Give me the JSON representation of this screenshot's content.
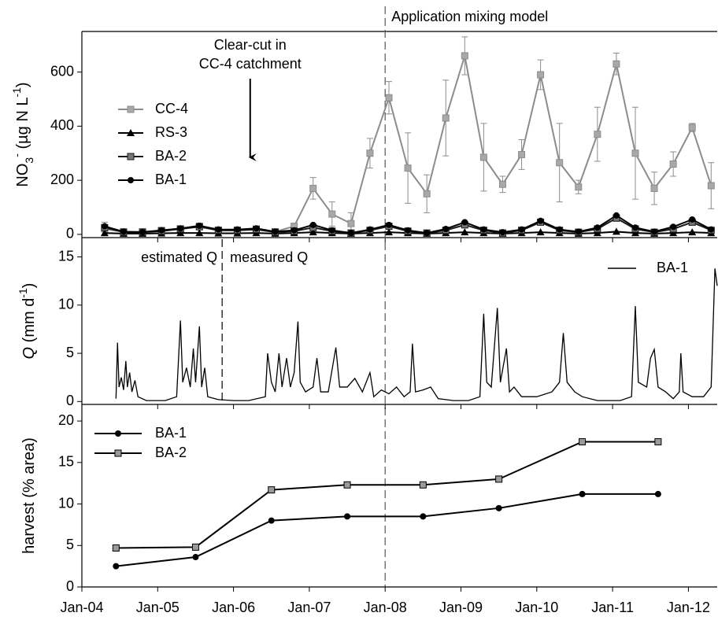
{
  "chart_data": [
    {
      "type": "line",
      "ylabel": [
        {
          "text": "NO"
        },
        {
          "text": "3",
          "pos": "sub"
        },
        {
          "text": "-",
          "pos": "sup"
        },
        {
          "text": " (µg N L"
        },
        {
          "text": "-1",
          "pos": "sup"
        },
        {
          "text": ")"
        }
      ],
      "xlim": [
        2004,
        2012.38
      ],
      "ylim": [
        -12,
        750
      ],
      "yticks": [
        0,
        200,
        400,
        600
      ],
      "x": [
        2004.3,
        2004.55,
        2004.8,
        2005.05,
        2005.3,
        2005.55,
        2005.8,
        2006.05,
        2006.3,
        2006.55,
        2006.8,
        2007.05,
        2007.3,
        2007.55,
        2007.8,
        2008.05,
        2008.3,
        2008.55,
        2008.8,
        2009.05,
        2009.3,
        2009.55,
        2009.8,
        2010.05,
        2010.3,
        2010.55,
        2010.8,
        2011.05,
        2011.3,
        2011.55,
        2011.8,
        2012.05,
        2012.3
      ],
      "legend": "upper left",
      "series": [
        {
          "name": "CC-4",
          "color": "#8c8c8c",
          "marker": "square",
          "fill": "#a8a8a8",
          "values": [
            20,
            10,
            10,
            15,
            20,
            30,
            15,
            15,
            20,
            10,
            30,
            170,
            75,
            40,
            300,
            505,
            245,
            150,
            430,
            660,
            285,
            185,
            295,
            590,
            265,
            175,
            370,
            630,
            300,
            170,
            260,
            395,
            180
          ],
          "errors": [
            25,
            5,
            5,
            5,
            8,
            10,
            8,
            5,
            8,
            5,
            10,
            40,
            45,
            40,
            55,
            60,
            130,
            70,
            140,
            70,
            125,
            30,
            55,
            55,
            145,
            25,
            100,
            40,
            170,
            60,
            45,
            15,
            85
          ]
        },
        {
          "name": "RS-3",
          "color": "#000000",
          "marker": "triangle",
          "fill": "#000000",
          "values": [
            5,
            3,
            3,
            4,
            5,
            5,
            4,
            4,
            5,
            3,
            5,
            8,
            5,
            3,
            5,
            8,
            5,
            3,
            5,
            8,
            5,
            3,
            5,
            8,
            5,
            3,
            5,
            10,
            5,
            3,
            5,
            8,
            5
          ]
        },
        {
          "name": "BA-2",
          "color": "#1a1a1a",
          "marker": "square",
          "fill": "#777777",
          "values": [
            25,
            8,
            8,
            12,
            20,
            28,
            15,
            15,
            18,
            8,
            12,
            25,
            12,
            5,
            15,
            30,
            12,
            5,
            15,
            35,
            15,
            5,
            15,
            45,
            15,
            8,
            20,
            60,
            20,
            8,
            20,
            45,
            15
          ]
        },
        {
          "name": "BA-1",
          "color": "#000000",
          "marker": "circle",
          "fill": "#000000",
          "values": [
            30,
            10,
            8,
            15,
            22,
            32,
            18,
            18,
            22,
            10,
            15,
            35,
            15,
            5,
            18,
            35,
            15,
            5,
            20,
            45,
            18,
            8,
            18,
            50,
            18,
            10,
            25,
            70,
            25,
            10,
            28,
            55,
            18
          ]
        }
      ],
      "annotations": [
        {
          "lines": [
            "Application mixing model"
          ],
          "x": 2008,
          "vline": "all"
        },
        {
          "lines": [
            "Clear-cut in",
            "CC-4 catchment"
          ],
          "x": 2006.22,
          "arrow": true
        }
      ]
    },
    {
      "type": "line",
      "ylabel": [
        {
          "text": "Q",
          "italic": true
        },
        {
          "text": " (mm d"
        },
        {
          "text": "-1",
          "pos": "sup"
        },
        {
          "text": ")"
        }
      ],
      "xlim": [
        2004,
        2012.38
      ],
      "ylim": [
        -0.3,
        17
      ],
      "yticks": [
        0,
        5,
        10,
        15
      ],
      "x": [
        2004.45,
        2004.47,
        2004.49,
        2004.52,
        2004.55,
        2004.58,
        2004.6,
        2004.63,
        2004.66,
        2004.7,
        2004.74,
        2004.85,
        2005.1,
        2005.25,
        2005.3,
        2005.33,
        2005.38,
        2005.43,
        2005.47,
        2005.5,
        2005.55,
        2005.58,
        2005.62,
        2005.66,
        2005.8,
        2006.0,
        2006.2,
        2006.42,
        2006.45,
        2006.5,
        2006.55,
        2006.6,
        2006.64,
        2006.7,
        2006.75,
        2006.8,
        2006.85,
        2006.88,
        2006.95,
        2007.05,
        2007.1,
        2007.15,
        2007.25,
        2007.35,
        2007.4,
        2007.5,
        2007.6,
        2007.7,
        2007.8,
        2007.85,
        2007.95,
        2008.05,
        2008.15,
        2008.25,
        2008.33,
        2008.36,
        2008.4,
        2008.5,
        2008.6,
        2008.7,
        2008.9,
        2009.1,
        2009.25,
        2009.3,
        2009.34,
        2009.4,
        2009.48,
        2009.52,
        2009.6,
        2009.64,
        2009.7,
        2009.8,
        2010.0,
        2010.2,
        2010.3,
        2010.35,
        2010.4,
        2010.5,
        2010.6,
        2010.8,
        2011.1,
        2011.25,
        2011.3,
        2011.34,
        2011.45,
        2011.5,
        2011.55,
        2011.6,
        2011.7,
        2011.8,
        2011.88,
        2011.9,
        2011.93,
        2012.05,
        2012.2,
        2012.3,
        2012.35,
        2012.38
      ],
      "legend": "upper right",
      "series": [
        {
          "name": "BA-1",
          "color": "#000000",
          "marker": "none",
          "values": [
            0.3,
            6.1,
            1.5,
            2.5,
            1.2,
            4.2,
            1.5,
            3.0,
            1.0,
            2.2,
            0.5,
            0.1,
            0.1,
            0.5,
            8.4,
            2,
            3.5,
            1.5,
            5.5,
            2,
            7.8,
            1.5,
            3.5,
            0.5,
            0.2,
            0.1,
            0.1,
            0.5,
            5.0,
            2,
            1,
            5.0,
            1.5,
            4.5,
            1.5,
            3,
            8.3,
            2,
            1,
            1.5,
            4.5,
            1,
            1,
            5.6,
            1.5,
            1.5,
            2.4,
            1,
            3.0,
            0.5,
            1.2,
            0.8,
            1.5,
            0.5,
            1,
            6.0,
            1,
            1.2,
            1.5,
            0.3,
            0.1,
            0.1,
            0.5,
            9.1,
            2,
            1.5,
            9.7,
            2,
            5.5,
            1,
            1.5,
            0.5,
            0.5,
            1,
            2,
            7.1,
            2,
            1,
            0.5,
            0.1,
            0.1,
            0.5,
            9.9,
            2,
            1.5,
            4.5,
            5.4,
            1.5,
            1,
            0.3,
            1,
            5.0,
            1,
            0.5,
            0.5,
            1.5,
            13.8,
            12
          ]
        }
      ],
      "annotations": [
        {
          "x": 2005.85,
          "left": "estimated Q",
          "right": "measured Q"
        }
      ]
    },
    {
      "type": "line",
      "ylabel": [
        {
          "text": "harvest (% area)"
        }
      ],
      "xlim": [
        2004,
        2012.38
      ],
      "ylim": [
        0,
        22
      ],
      "yticks": [
        0,
        5,
        10,
        15,
        20
      ],
      "xticks": [
        {
          "value": 2004,
          "label": "Jan-04"
        },
        {
          "value": 2005,
          "label": "Jan-05"
        },
        {
          "value": 2006,
          "label": "Jan-06"
        },
        {
          "value": 2007,
          "label": "Jan-07"
        },
        {
          "value": 2008,
          "label": "Jan-08"
        },
        {
          "value": 2009,
          "label": "Jan-09"
        },
        {
          "value": 2010,
          "label": "Jan-10"
        },
        {
          "value": 2011,
          "label": "Jan-11"
        },
        {
          "value": 2012,
          "label": "Jan-12"
        }
      ],
      "x": [
        2004.45,
        2005.5,
        2006.5,
        2007.5,
        2008.5,
        2009.5,
        2010.6,
        2011.6
      ],
      "legend": "upper left",
      "series": [
        {
          "name": "BA-1",
          "color": "#000000",
          "marker": "circle",
          "fill": "#000000",
          "values": [
            2.5,
            3.6,
            8.0,
            8.5,
            8.5,
            9.5,
            11.2,
            11.2
          ]
        },
        {
          "name": "BA-2",
          "color": "#000000",
          "marker": "square",
          "fill": "#9a9a9a",
          "values": [
            4.7,
            4.8,
            11.7,
            12.3,
            12.3,
            13.0,
            17.5,
            17.5
          ]
        }
      ]
    }
  ]
}
